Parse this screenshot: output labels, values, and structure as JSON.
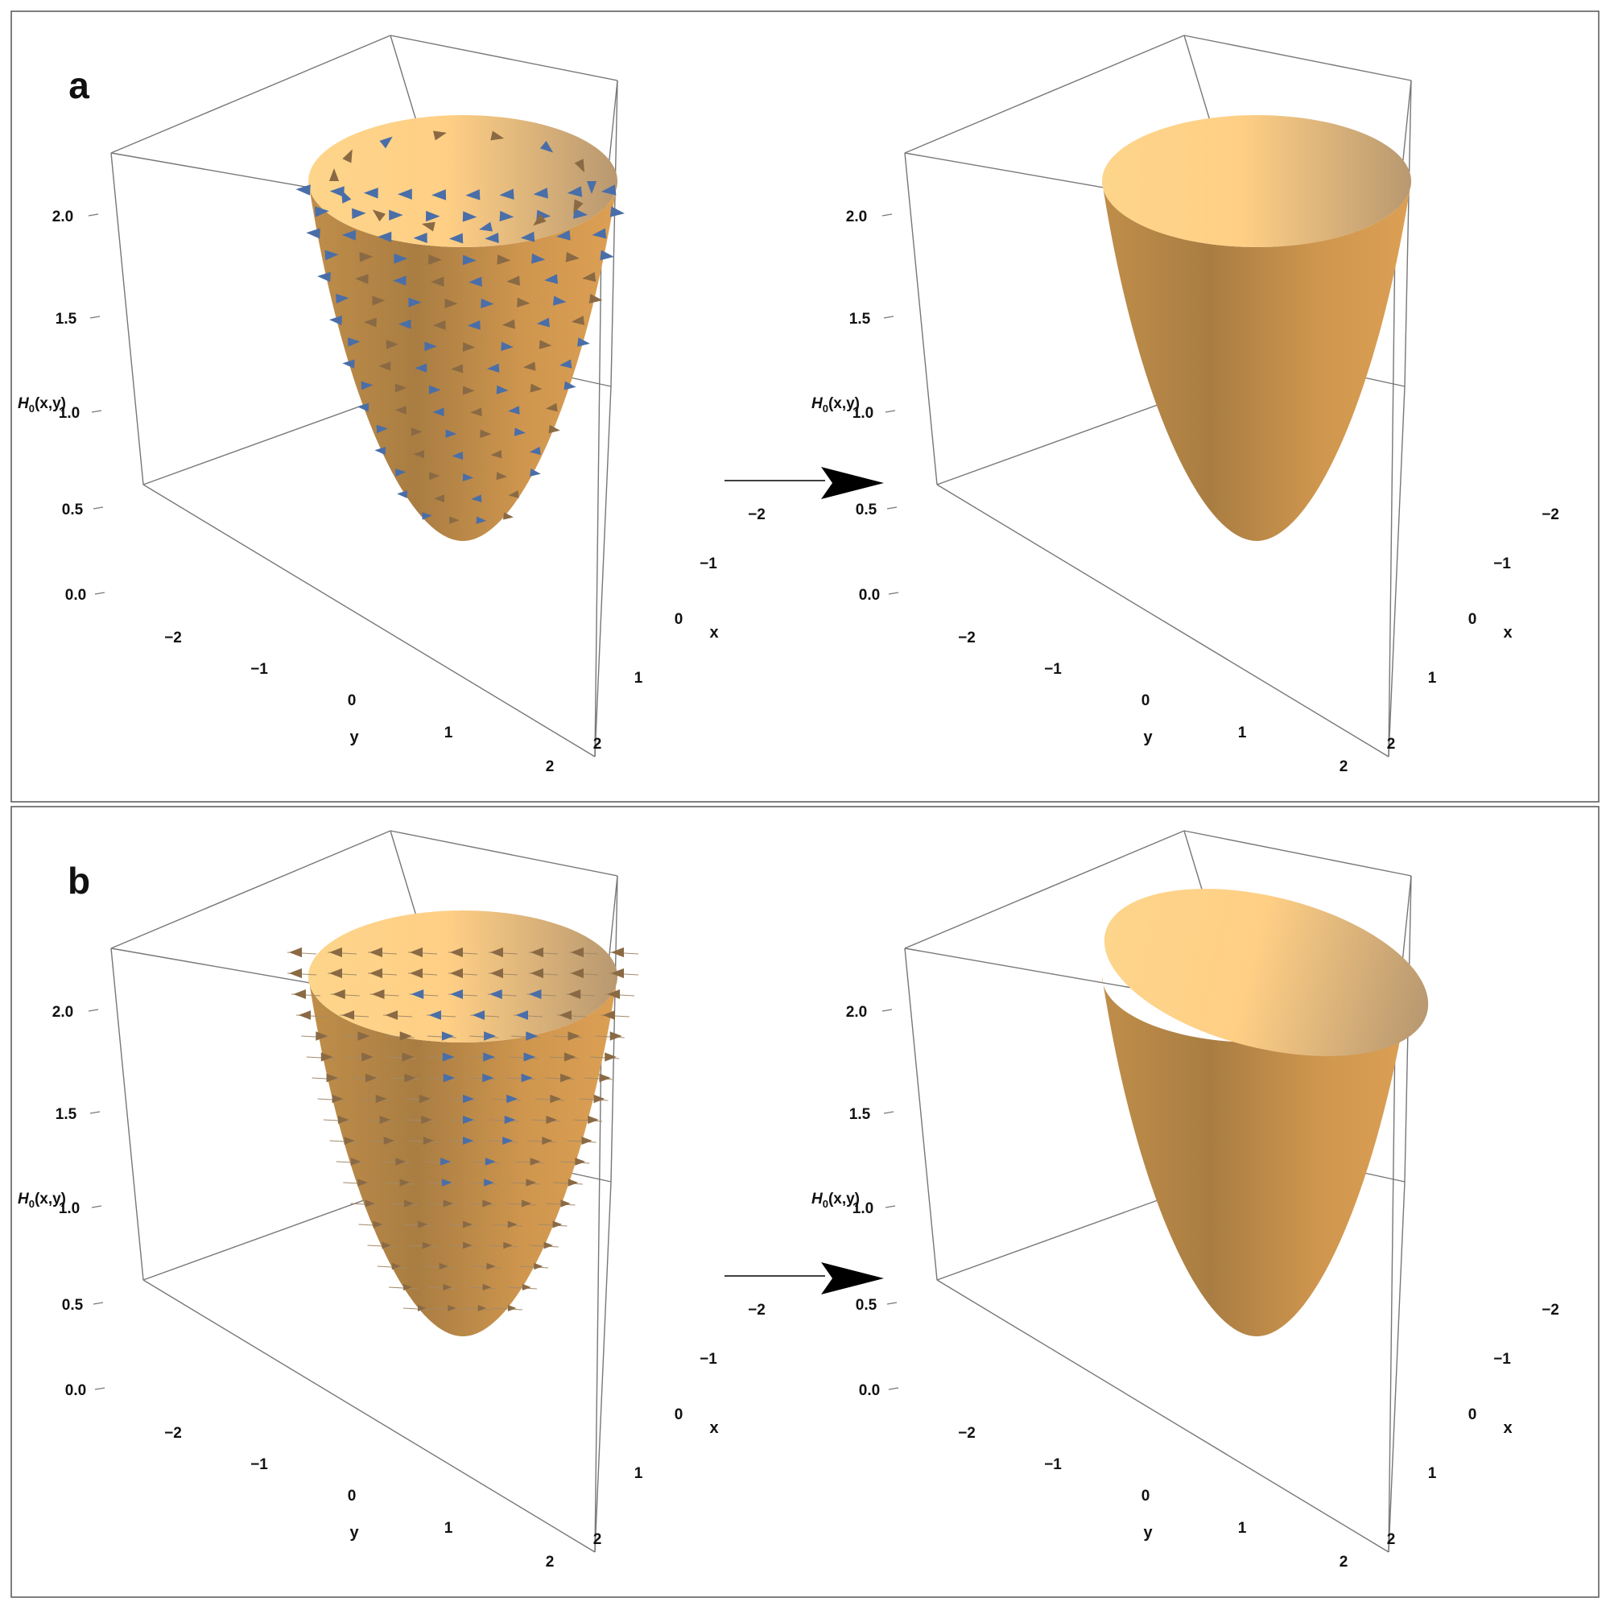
{
  "panels": [
    {
      "label": "a",
      "axis_labels": {
        "z": "H₀(x,y)",
        "x": "x",
        "y": "y"
      },
      "z_ticks": [
        "2.0",
        "1.5",
        "1.0",
        "0.5",
        "0.0"
      ],
      "x_ticks": [
        "−2",
        "−1",
        "0",
        "1",
        "2"
      ],
      "y_ticks": [
        "−2",
        "−1",
        "0",
        "1",
        "2"
      ],
      "left_plot": {
        "surface": "paraboloid",
        "field": "circulating-arrows"
      },
      "right_plot": {
        "surface": "paraboloid",
        "field": "none"
      }
    },
    {
      "label": "b",
      "axis_labels": {
        "z": "H₀(x,y)",
        "x": "x",
        "y": "y"
      },
      "z_ticks": [
        "2.0",
        "1.5",
        "1.0",
        "0.5",
        "0.0"
      ],
      "x_ticks": [
        "−2",
        "−1",
        "0",
        "1",
        "2"
      ],
      "y_ticks": [
        "−2",
        "−1",
        "0",
        "1",
        "2"
      ],
      "left_plot": {
        "surface": "paraboloid",
        "field": "shear-arrows"
      },
      "right_plot": {
        "surface": "tilted-paraboloid",
        "field": "none"
      }
    }
  ],
  "colors": {
    "surface_dark": "#a97d42",
    "surface_mid": "#d29a50",
    "surface_light": "#fdd58b",
    "rim_right": "#b89870",
    "arrow_blue": "#4a6ea8",
    "arrow_brown": "#8a6a44",
    "box_line": "#777777",
    "frame": "#555555",
    "transition_arrow": "#000000"
  }
}
